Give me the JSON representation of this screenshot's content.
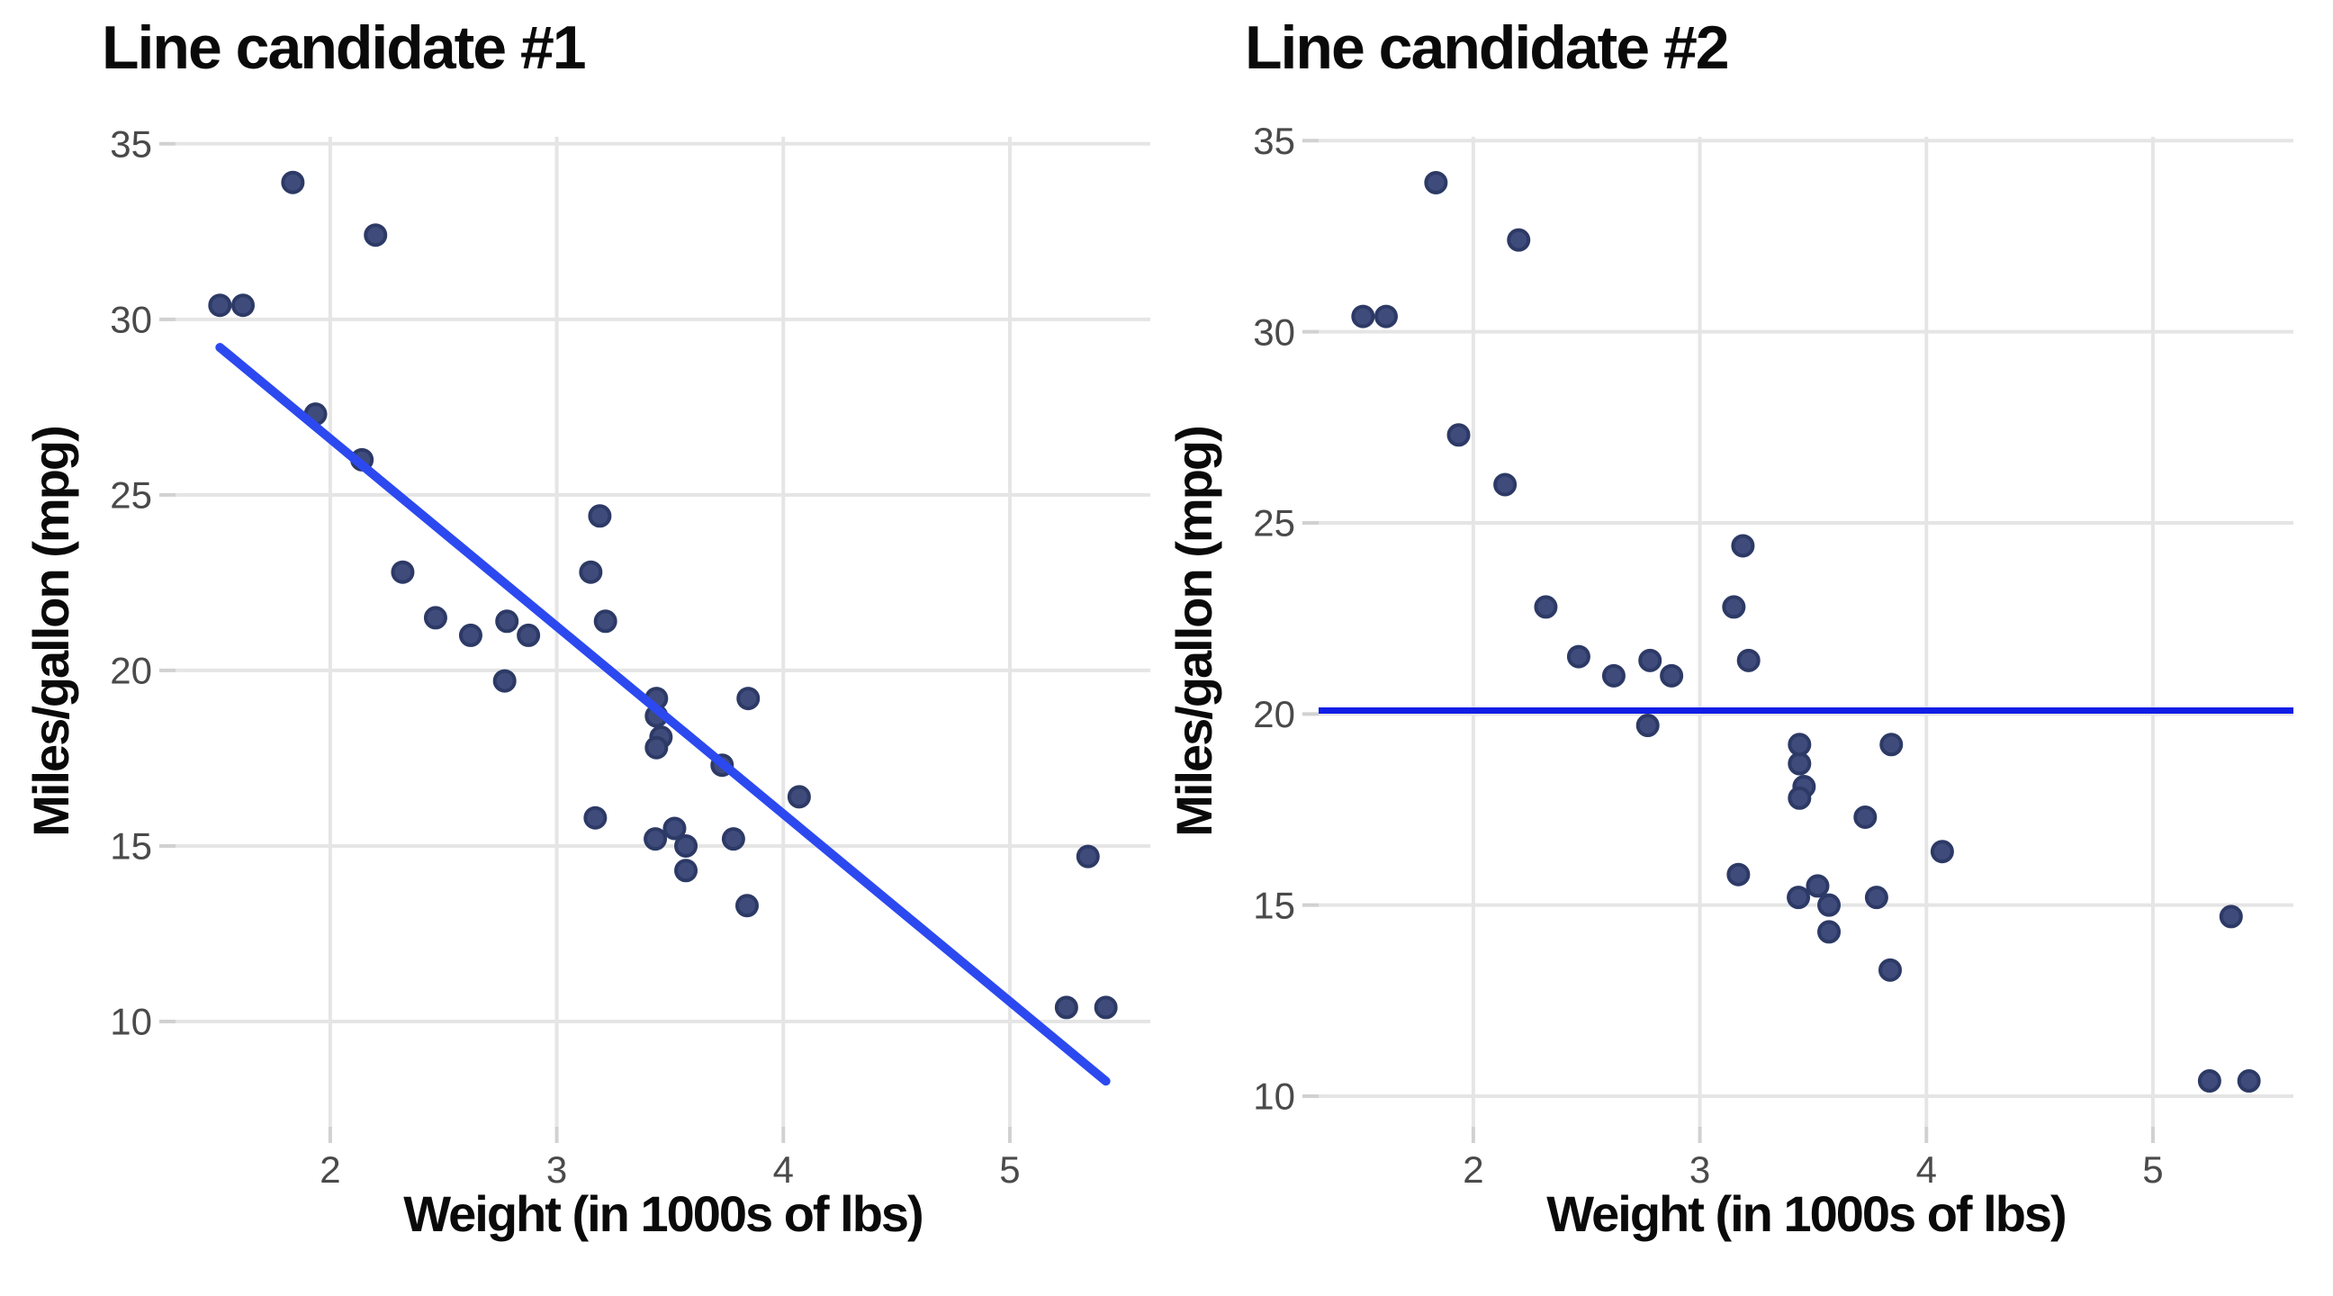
{
  "page": {
    "background": "#ffffff",
    "description": "Two side-by-side scatterplots of car weight vs fuel economy comparing two candidate fit lines"
  },
  "styles": {
    "point_fill": "#3f4b7b",
    "point_stroke": "#2d3a66",
    "grid_color": "#e5e5e5",
    "axis_tick_color": "#d1d1d1",
    "tick_label_color": "#4a4a4a",
    "title_color": "#0a0a0a",
    "line1_color": "#2c49f0",
    "line2_color": "#101ee6"
  },
  "chart_data": [
    {
      "type": "scatter",
      "title": "Line candidate #1",
      "xlabel": "Weight (in 1000s of lbs)",
      "ylabel": "Miles/gallon (mpg)",
      "xlim": [
        1.317,
        5.62
      ],
      "ylim": [
        7.0,
        35.2
      ],
      "xticks": [
        2,
        3,
        4,
        5
      ],
      "yticks": [
        10,
        15,
        20,
        25,
        30,
        35
      ],
      "grid": true,
      "legend": "none",
      "points": [
        [
          2.62,
          21.0
        ],
        [
          2.875,
          21.0
        ],
        [
          2.32,
          22.8
        ],
        [
          3.215,
          21.4
        ],
        [
          3.44,
          18.7
        ],
        [
          3.46,
          18.1
        ],
        [
          3.57,
          14.3
        ],
        [
          3.19,
          24.4
        ],
        [
          3.15,
          22.8
        ],
        [
          3.44,
          19.2
        ],
        [
          3.44,
          17.8
        ],
        [
          4.07,
          16.4
        ],
        [
          3.73,
          17.3
        ],
        [
          3.78,
          15.2
        ],
        [
          5.25,
          10.4
        ],
        [
          5.424,
          10.4
        ],
        [
          5.345,
          14.7
        ],
        [
          2.2,
          32.4
        ],
        [
          1.615,
          30.4
        ],
        [
          1.835,
          33.9
        ],
        [
          2.465,
          21.5
        ],
        [
          3.52,
          15.5
        ],
        [
          3.435,
          15.2
        ],
        [
          3.84,
          13.3
        ],
        [
          3.845,
          19.2
        ],
        [
          1.935,
          27.3
        ],
        [
          2.14,
          26.0
        ],
        [
          1.513,
          30.4
        ],
        [
          3.17,
          15.8
        ],
        [
          2.77,
          19.7
        ],
        [
          3.57,
          15.0
        ],
        [
          2.78,
          21.4
        ]
      ],
      "line": {
        "kind": "segment",
        "x1": 1.513,
        "y1": 29.2,
        "x2": 5.424,
        "y2": 8.3,
        "color": "#2c49f0",
        "width": 10
      }
    },
    {
      "type": "scatter",
      "title": "Line candidate #2",
      "xlabel": "Weight (in 1000s of lbs)",
      "ylabel": "Miles/gallon (mpg)",
      "xlim": [
        1.317,
        5.62
      ],
      "ylim": [
        9.2,
        35.1
      ],
      "xticks": [
        2,
        3,
        4,
        5
      ],
      "yticks": [
        10,
        15,
        20,
        25,
        30,
        35
      ],
      "grid": true,
      "legend": "none",
      "points": [
        [
          2.62,
          21.0
        ],
        [
          2.875,
          21.0
        ],
        [
          2.32,
          22.8
        ],
        [
          3.215,
          21.4
        ],
        [
          3.44,
          18.7
        ],
        [
          3.46,
          18.1
        ],
        [
          3.57,
          14.3
        ],
        [
          3.19,
          24.4
        ],
        [
          3.15,
          22.8
        ],
        [
          3.44,
          19.2
        ],
        [
          3.44,
          17.8
        ],
        [
          4.07,
          16.4
        ],
        [
          3.73,
          17.3
        ],
        [
          3.78,
          15.2
        ],
        [
          5.25,
          10.4
        ],
        [
          5.424,
          10.4
        ],
        [
          5.345,
          14.7
        ],
        [
          2.2,
          32.4
        ],
        [
          1.615,
          30.4
        ],
        [
          1.835,
          33.9
        ],
        [
          2.465,
          21.5
        ],
        [
          3.52,
          15.5
        ],
        [
          3.435,
          15.2
        ],
        [
          3.84,
          13.3
        ],
        [
          3.845,
          19.2
        ],
        [
          1.935,
          27.3
        ],
        [
          2.14,
          26.0
        ],
        [
          1.513,
          30.4
        ],
        [
          3.17,
          15.8
        ],
        [
          2.77,
          19.7
        ],
        [
          3.57,
          15.0
        ],
        [
          2.78,
          21.4
        ]
      ],
      "line": {
        "kind": "hline",
        "y": 20.09,
        "color": "#101ee6",
        "width": 7
      }
    }
  ]
}
